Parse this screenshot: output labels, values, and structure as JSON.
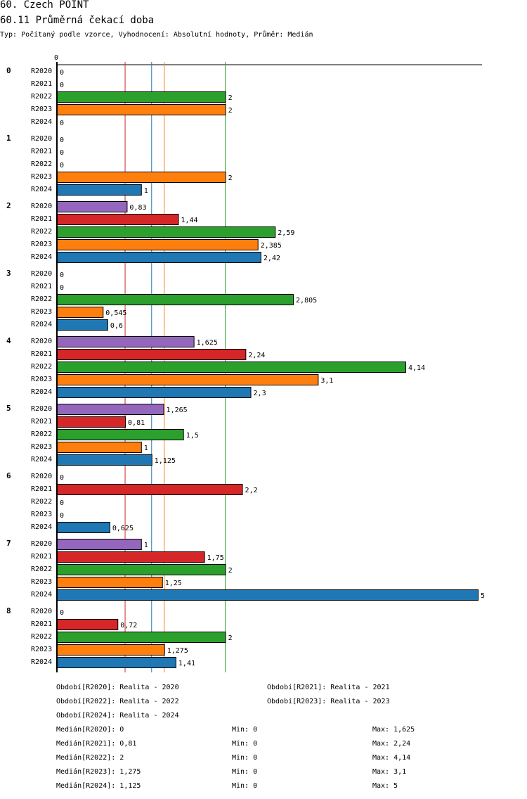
{
  "header": {
    "title": "60. Czech POINT",
    "subtitle": "60.11 Průměrná čekací doba",
    "type_line": "Typ: Počítaný podle vzorce, Vyhodnocení: Absolutní hodnoty, Průměr: Medián"
  },
  "chart_data": {
    "type": "bar",
    "orientation": "horizontal",
    "axis_zero_label": "0",
    "xlim": [
      0,
      5
    ],
    "groups": [
      "0",
      "1",
      "2",
      "3",
      "4",
      "5",
      "6",
      "7",
      "8"
    ],
    "series": [
      {
        "name": "R2020",
        "color": "#9467bd",
        "values": [
          0,
          0,
          0.83,
          0,
          1.625,
          1.265,
          0,
          1,
          0
        ],
        "labels": [
          "0",
          "0",
          "0,83",
          "0",
          "1,625",
          "1,265",
          "0",
          "1",
          "0"
        ]
      },
      {
        "name": "R2021",
        "color": "#d62728",
        "values": [
          0,
          0,
          1.44,
          0,
          2.24,
          0.81,
          2.2,
          1.75,
          0.72
        ],
        "labels": [
          "0",
          "0",
          "1,44",
          "0",
          "2,24",
          "0,81",
          "2,2",
          "1,75",
          "0,72"
        ]
      },
      {
        "name": "R2022",
        "color": "#2ca02c",
        "values": [
          2,
          0,
          2.59,
          2.805,
          4.14,
          1.5,
          0,
          2,
          2
        ],
        "labels": [
          "2",
          "0",
          "2,59",
          "2,805",
          "4,14",
          "1,5",
          "0",
          "2",
          "2"
        ]
      },
      {
        "name": "R2023",
        "color": "#ff7f0e",
        "values": [
          2,
          2,
          2.385,
          0.545,
          3.1,
          1,
          0,
          1.25,
          1.275
        ],
        "labels": [
          "2",
          "2",
          "2,385",
          "0,545",
          "3,1",
          "1",
          "0",
          "1,25",
          "1,275"
        ]
      },
      {
        "name": "R2024",
        "color": "#1f77b4",
        "values": [
          0,
          1,
          2.42,
          0.6,
          2.3,
          1.125,
          0.625,
          5,
          1.41
        ],
        "labels": [
          "0",
          "1",
          "2,42",
          "0,6",
          "2,3",
          "1,125",
          "0,625",
          "5",
          "1,41"
        ]
      }
    ],
    "medians": [
      {
        "name": "R2021",
        "value": 0.81,
        "color": "#d62728"
      },
      {
        "name": "R2024",
        "value": 1.125,
        "color": "#1f77b4"
      },
      {
        "name": "R2023",
        "value": 1.275,
        "color": "#ff7f0e"
      },
      {
        "name": "R2022",
        "value": 2,
        "color": "#2ca02c"
      }
    ]
  },
  "legend": {
    "periods": [
      "Období[R2020]: Realita - 2020",
      "Období[R2021]: Realita - 2021",
      "Období[R2022]: Realita - 2022",
      "Období[R2023]: Realita - 2023",
      "Období[R2024]: Realita - 2024"
    ],
    "stats": [
      {
        "median": "Medián[R2020]: 0",
        "min": "Min: 0",
        "max": "Max: 1,625"
      },
      {
        "median": "Medián[R2021]: 0,81",
        "min": "Min: 0",
        "max": "Max: 2,24"
      },
      {
        "median": "Medián[R2022]: 2",
        "min": "Min: 0",
        "max": "Max: 4,14"
      },
      {
        "median": "Medián[R2023]: 1,275",
        "min": "Min: 0",
        "max": "Max: 3,1"
      },
      {
        "median": "Medián[R2024]: 1,125",
        "min": "Min: 0",
        "max": "Max: 5"
      }
    ]
  }
}
